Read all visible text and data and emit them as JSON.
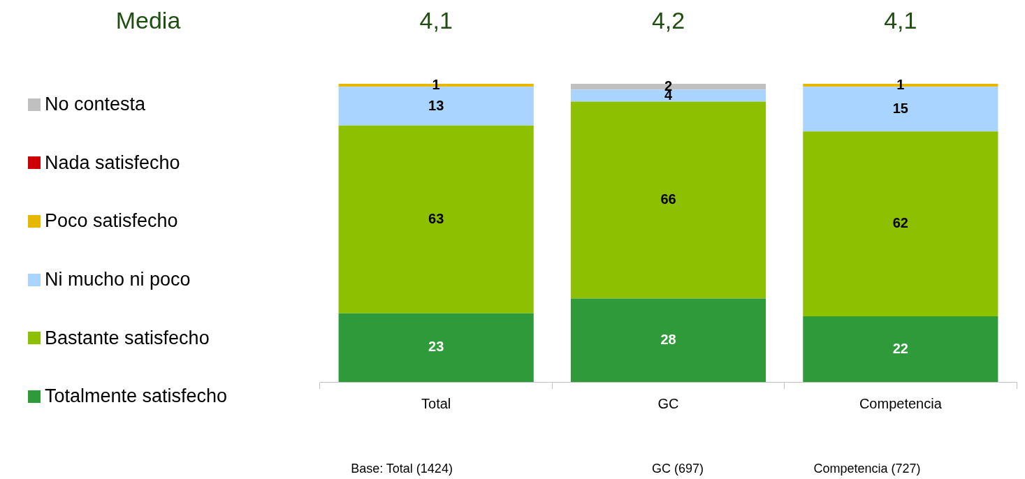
{
  "chart_data": {
    "type": "bar",
    "stacked": true,
    "categories": [
      "Total",
      "GC",
      "Competencia"
    ],
    "series": [
      {
        "name": "Totalmente satisfecho",
        "color": "#2e9a3a",
        "values": [
          23,
          28,
          22
        ],
        "value_labels": [
          "23",
          "28",
          "22"
        ]
      },
      {
        "name": "Bastante satisfecho",
        "color": "#8cc000",
        "values": [
          63,
          66,
          62
        ],
        "value_labels": [
          "63",
          "66",
          "62"
        ]
      },
      {
        "name": "Ni mucho ni poco",
        "color": "#a9d4ff",
        "values": [
          13,
          4,
          15
        ],
        "value_labels": [
          "13",
          "4",
          "15"
        ]
      },
      {
        "name": "Poco satisfecho",
        "color": "#e6b800",
        "values": [
          1,
          0,
          1
        ],
        "value_labels": [
          "1",
          null,
          "1"
        ]
      },
      {
        "name": "Nada satisfecho",
        "color": "#cc0000",
        "values": [
          0,
          0,
          0
        ],
        "value_labels": [
          null,
          null,
          null
        ]
      },
      {
        "name": "No contesta",
        "color": "#c0c0c0",
        "values": [
          0,
          2,
          0
        ],
        "value_labels": [
          null,
          "2",
          null
        ]
      }
    ],
    "legend": "left",
    "grid": false,
    "annotations": [
      "Media",
      "4,1",
      "4,2",
      "4,1",
      "Base: Total (1424)",
      "GC (697)",
      "Competencia (727)"
    ]
  }
}
